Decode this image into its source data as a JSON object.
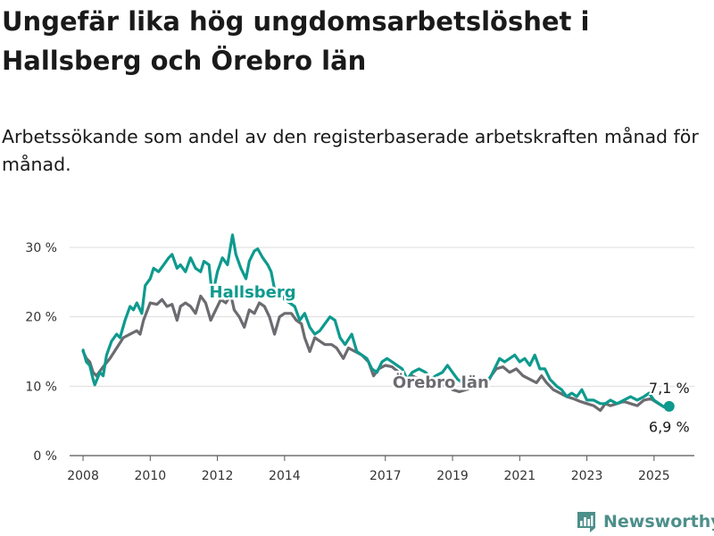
{
  "title": "Ungefär lika hög ungdomsarbetslöshet i Hallsberg och Örebro län",
  "subtitle": "Arbetssökande som andel av den registerbaserade arbetskraften månad för månad.",
  "brand": {
    "name": "Newsworthy",
    "icon": "bar-chart-logo-icon",
    "color": "#4d8f8a"
  },
  "chart_data": {
    "type": "line",
    "title": "Ungefär lika hög ungdomsarbetslöshet i Hallsberg och Örebro län",
    "subtitle": "Arbetssökande som andel av den registerbaserade arbetskraften månad för månad.",
    "xlabel": "",
    "ylabel": "",
    "xlim": [
      2007.6,
      2026.2
    ],
    "ylim": [
      0,
      32
    ],
    "grid": "horizontal",
    "legend": "inline labels",
    "x_ticks": [
      {
        "value": 2008,
        "label": "2008"
      },
      {
        "value": 2010,
        "label": "2010"
      },
      {
        "value": 2012,
        "label": "2012"
      },
      {
        "value": 2014,
        "label": "2014"
      },
      {
        "value": 2017,
        "label": "2017"
      },
      {
        "value": 2019,
        "label": "2019"
      },
      {
        "value": 2021,
        "label": "2021"
      },
      {
        "value": 2023,
        "label": "2023"
      },
      {
        "value": 2025,
        "label": "2025"
      }
    ],
    "y_ticks": [
      {
        "value": 0,
        "label": "0 %"
      },
      {
        "value": 10,
        "label": "10 %"
      },
      {
        "value": 20,
        "label": "20 %"
      },
      {
        "value": 30,
        "label": "30 %"
      }
    ],
    "series": [
      {
        "name": "Örebro län",
        "color": "#6b6b70",
        "label_at": [
          2018.65,
          9.8
        ],
        "end_label": "6,9 %",
        "points": [
          [
            2008.0,
            15.0
          ],
          [
            2008.1,
            14.0
          ],
          [
            2008.2,
            13.5
          ],
          [
            2008.3,
            12.0
          ],
          [
            2008.4,
            11.5
          ],
          [
            2008.6,
            12.8
          ],
          [
            2008.8,
            14.0
          ],
          [
            2009.0,
            15.5
          ],
          [
            2009.2,
            17.0
          ],
          [
            2009.4,
            17.5
          ],
          [
            2009.6,
            18.0
          ],
          [
            2009.7,
            17.5
          ],
          [
            2009.8,
            19.5
          ],
          [
            2010.0,
            22.0
          ],
          [
            2010.2,
            21.8
          ],
          [
            2010.35,
            22.5
          ],
          [
            2010.5,
            21.5
          ],
          [
            2010.65,
            21.8
          ],
          [
            2010.8,
            19.5
          ],
          [
            2010.9,
            21.5
          ],
          [
            2011.05,
            22.0
          ],
          [
            2011.2,
            21.5
          ],
          [
            2011.35,
            20.5
          ],
          [
            2011.5,
            23.0
          ],
          [
            2011.65,
            22.0
          ],
          [
            2011.8,
            19.5
          ],
          [
            2011.95,
            21.0
          ],
          [
            2012.1,
            22.5
          ],
          [
            2012.25,
            22.0
          ],
          [
            2012.4,
            23.2
          ],
          [
            2012.5,
            21.0
          ],
          [
            2012.65,
            20.0
          ],
          [
            2012.8,
            18.5
          ],
          [
            2012.95,
            21.0
          ],
          [
            2013.1,
            20.5
          ],
          [
            2013.25,
            22.0
          ],
          [
            2013.4,
            21.5
          ],
          [
            2013.55,
            20.0
          ],
          [
            2013.7,
            17.5
          ],
          [
            2013.85,
            20.0
          ],
          [
            2014.0,
            20.5
          ],
          [
            2014.2,
            20.5
          ],
          [
            2014.35,
            19.5
          ],
          [
            2014.5,
            19.0
          ],
          [
            2014.6,
            17.0
          ],
          [
            2014.75,
            15.0
          ],
          [
            2014.9,
            17.0
          ],
          [
            2015.05,
            16.5
          ],
          [
            2015.2,
            16.0
          ],
          [
            2015.4,
            16.0
          ],
          [
            2015.55,
            15.5
          ],
          [
            2015.75,
            14.0
          ],
          [
            2015.9,
            15.5
          ],
          [
            2016.1,
            15.0
          ],
          [
            2016.3,
            14.5
          ],
          [
            2016.5,
            13.5
          ],
          [
            2016.65,
            11.5
          ],
          [
            2016.8,
            12.5
          ],
          [
            2017.0,
            13.0
          ],
          [
            2017.2,
            12.8
          ],
          [
            2017.4,
            12.0
          ],
          [
            2017.6,
            10.5
          ],
          [
            2017.8,
            11.5
          ],
          [
            2018.0,
            11.0
          ],
          [
            2018.2,
            10.8
          ],
          [
            2018.4,
            10.2
          ],
          [
            2018.6,
            10.0
          ],
          [
            2018.8,
            10.2
          ],
          [
            2019.0,
            9.5
          ],
          [
            2019.2,
            9.2
          ],
          [
            2019.4,
            9.5
          ],
          [
            2019.6,
            9.8
          ],
          [
            2019.8,
            10.0
          ],
          [
            2020.0,
            10.2
          ],
          [
            2020.15,
            11.5
          ],
          [
            2020.3,
            12.5
          ],
          [
            2020.5,
            12.8
          ],
          [
            2020.7,
            12.0
          ],
          [
            2020.9,
            12.5
          ],
          [
            2021.1,
            11.5
          ],
          [
            2021.3,
            11.0
          ],
          [
            2021.5,
            10.5
          ],
          [
            2021.65,
            11.5
          ],
          [
            2021.8,
            10.5
          ],
          [
            2022.0,
            9.5
          ],
          [
            2022.2,
            9.0
          ],
          [
            2022.4,
            8.5
          ],
          [
            2022.6,
            8.2
          ],
          [
            2022.8,
            7.8
          ],
          [
            2023.0,
            7.5
          ],
          [
            2023.2,
            7.2
          ],
          [
            2023.4,
            6.5
          ],
          [
            2023.55,
            7.5
          ],
          [
            2023.7,
            7.2
          ],
          [
            2023.9,
            7.5
          ],
          [
            2024.1,
            7.8
          ],
          [
            2024.3,
            7.5
          ],
          [
            2024.5,
            7.2
          ],
          [
            2024.7,
            8.0
          ],
          [
            2024.9,
            8.2
          ],
          [
            2025.1,
            7.6
          ],
          [
            2025.3,
            7.0
          ],
          [
            2025.45,
            6.9
          ]
        ]
      },
      {
        "name": "Hallsberg",
        "color": "#0e9a8e",
        "label_at": [
          2013.05,
          22.8
        ],
        "end_label": "7,1 %",
        "points": [
          [
            2008.0,
            15.2
          ],
          [
            2008.1,
            13.5
          ],
          [
            2008.2,
            13.0
          ],
          [
            2008.3,
            11.0
          ],
          [
            2008.35,
            10.2
          ],
          [
            2008.5,
            12.0
          ],
          [
            2008.6,
            11.5
          ],
          [
            2008.7,
            14.5
          ],
          [
            2008.85,
            16.5
          ],
          [
            2009.0,
            17.5
          ],
          [
            2009.1,
            17.0
          ],
          [
            2009.25,
            19.5
          ],
          [
            2009.4,
            21.5
          ],
          [
            2009.5,
            21.0
          ],
          [
            2009.6,
            22.0
          ],
          [
            2009.75,
            20.5
          ],
          [
            2009.85,
            24.5
          ],
          [
            2010.0,
            25.5
          ],
          [
            2010.1,
            27.0
          ],
          [
            2010.25,
            26.5
          ],
          [
            2010.4,
            27.5
          ],
          [
            2010.55,
            28.5
          ],
          [
            2010.65,
            29.0
          ],
          [
            2010.8,
            27.0
          ],
          [
            2010.9,
            27.5
          ],
          [
            2011.05,
            26.5
          ],
          [
            2011.2,
            28.5
          ],
          [
            2011.35,
            27.0
          ],
          [
            2011.5,
            26.5
          ],
          [
            2011.6,
            28.0
          ],
          [
            2011.75,
            27.5
          ],
          [
            2011.85,
            23.0
          ],
          [
            2012.0,
            26.5
          ],
          [
            2012.15,
            28.5
          ],
          [
            2012.3,
            27.5
          ],
          [
            2012.45,
            31.8
          ],
          [
            2012.55,
            29.0
          ],
          [
            2012.7,
            27.0
          ],
          [
            2012.85,
            25.5
          ],
          [
            2012.95,
            28.0
          ],
          [
            2013.1,
            29.5
          ],
          [
            2013.2,
            29.8
          ],
          [
            2013.35,
            28.5
          ],
          [
            2013.5,
            27.5
          ],
          [
            2013.6,
            26.5
          ],
          [
            2013.7,
            24.0
          ],
          [
            2013.85,
            23.5
          ],
          [
            2014.0,
            22.5
          ],
          [
            2014.15,
            22.0
          ],
          [
            2014.3,
            21.5
          ],
          [
            2014.45,
            19.5
          ],
          [
            2014.6,
            20.5
          ],
          [
            2014.75,
            18.5
          ],
          [
            2014.9,
            17.5
          ],
          [
            2015.05,
            18.0
          ],
          [
            2015.2,
            19.0
          ],
          [
            2015.35,
            20.0
          ],
          [
            2015.5,
            19.5
          ],
          [
            2015.65,
            17.0
          ],
          [
            2015.8,
            16.0
          ],
          [
            2016.0,
            17.5
          ],
          [
            2016.15,
            15.0
          ],
          [
            2016.3,
            14.5
          ],
          [
            2016.45,
            14.0
          ],
          [
            2016.6,
            12.5
          ],
          [
            2016.75,
            12.0
          ],
          [
            2016.9,
            13.5
          ],
          [
            2017.05,
            14.0
          ],
          [
            2017.2,
            13.5
          ],
          [
            2017.35,
            13.0
          ],
          [
            2017.5,
            12.5
          ],
          [
            2017.65,
            11.0
          ],
          [
            2017.8,
            12.0
          ],
          [
            2018.0,
            12.5
          ],
          [
            2018.2,
            12.0
          ],
          [
            2018.35,
            11.0
          ],
          [
            2018.5,
            11.5
          ],
          [
            2018.7,
            12.0
          ],
          [
            2018.85,
            13.0
          ],
          [
            2019.0,
            12.0
          ],
          [
            2019.15,
            11.0
          ],
          [
            2019.3,
            10.5
          ],
          [
            2019.5,
            11.0
          ],
          [
            2019.65,
            10.5
          ],
          [
            2019.8,
            11.0
          ],
          [
            2020.0,
            10.5
          ],
          [
            2020.15,
            11.5
          ],
          [
            2020.3,
            13.0
          ],
          [
            2020.4,
            14.0
          ],
          [
            2020.55,
            13.5
          ],
          [
            2020.7,
            14.0
          ],
          [
            2020.85,
            14.5
          ],
          [
            2021.0,
            13.5
          ],
          [
            2021.15,
            14.0
          ],
          [
            2021.3,
            13.0
          ],
          [
            2021.45,
            14.5
          ],
          [
            2021.6,
            12.5
          ],
          [
            2021.75,
            12.5
          ],
          [
            2021.9,
            11.0
          ],
          [
            2022.1,
            10.0
          ],
          [
            2022.25,
            9.5
          ],
          [
            2022.4,
            8.5
          ],
          [
            2022.55,
            9.0
          ],
          [
            2022.7,
            8.5
          ],
          [
            2022.85,
            9.5
          ],
          [
            2023.0,
            8.0
          ],
          [
            2023.2,
            8.0
          ],
          [
            2023.4,
            7.5
          ],
          [
            2023.55,
            7.5
          ],
          [
            2023.7,
            8.0
          ],
          [
            2023.9,
            7.5
          ],
          [
            2024.1,
            8.0
          ],
          [
            2024.3,
            8.5
          ],
          [
            2024.5,
            8.0
          ],
          [
            2024.7,
            8.5
          ],
          [
            2024.85,
            9.0
          ],
          [
            2025.0,
            8.0
          ],
          [
            2025.15,
            7.5
          ],
          [
            2025.3,
            7.0
          ],
          [
            2025.45,
            7.1
          ]
        ]
      }
    ]
  }
}
